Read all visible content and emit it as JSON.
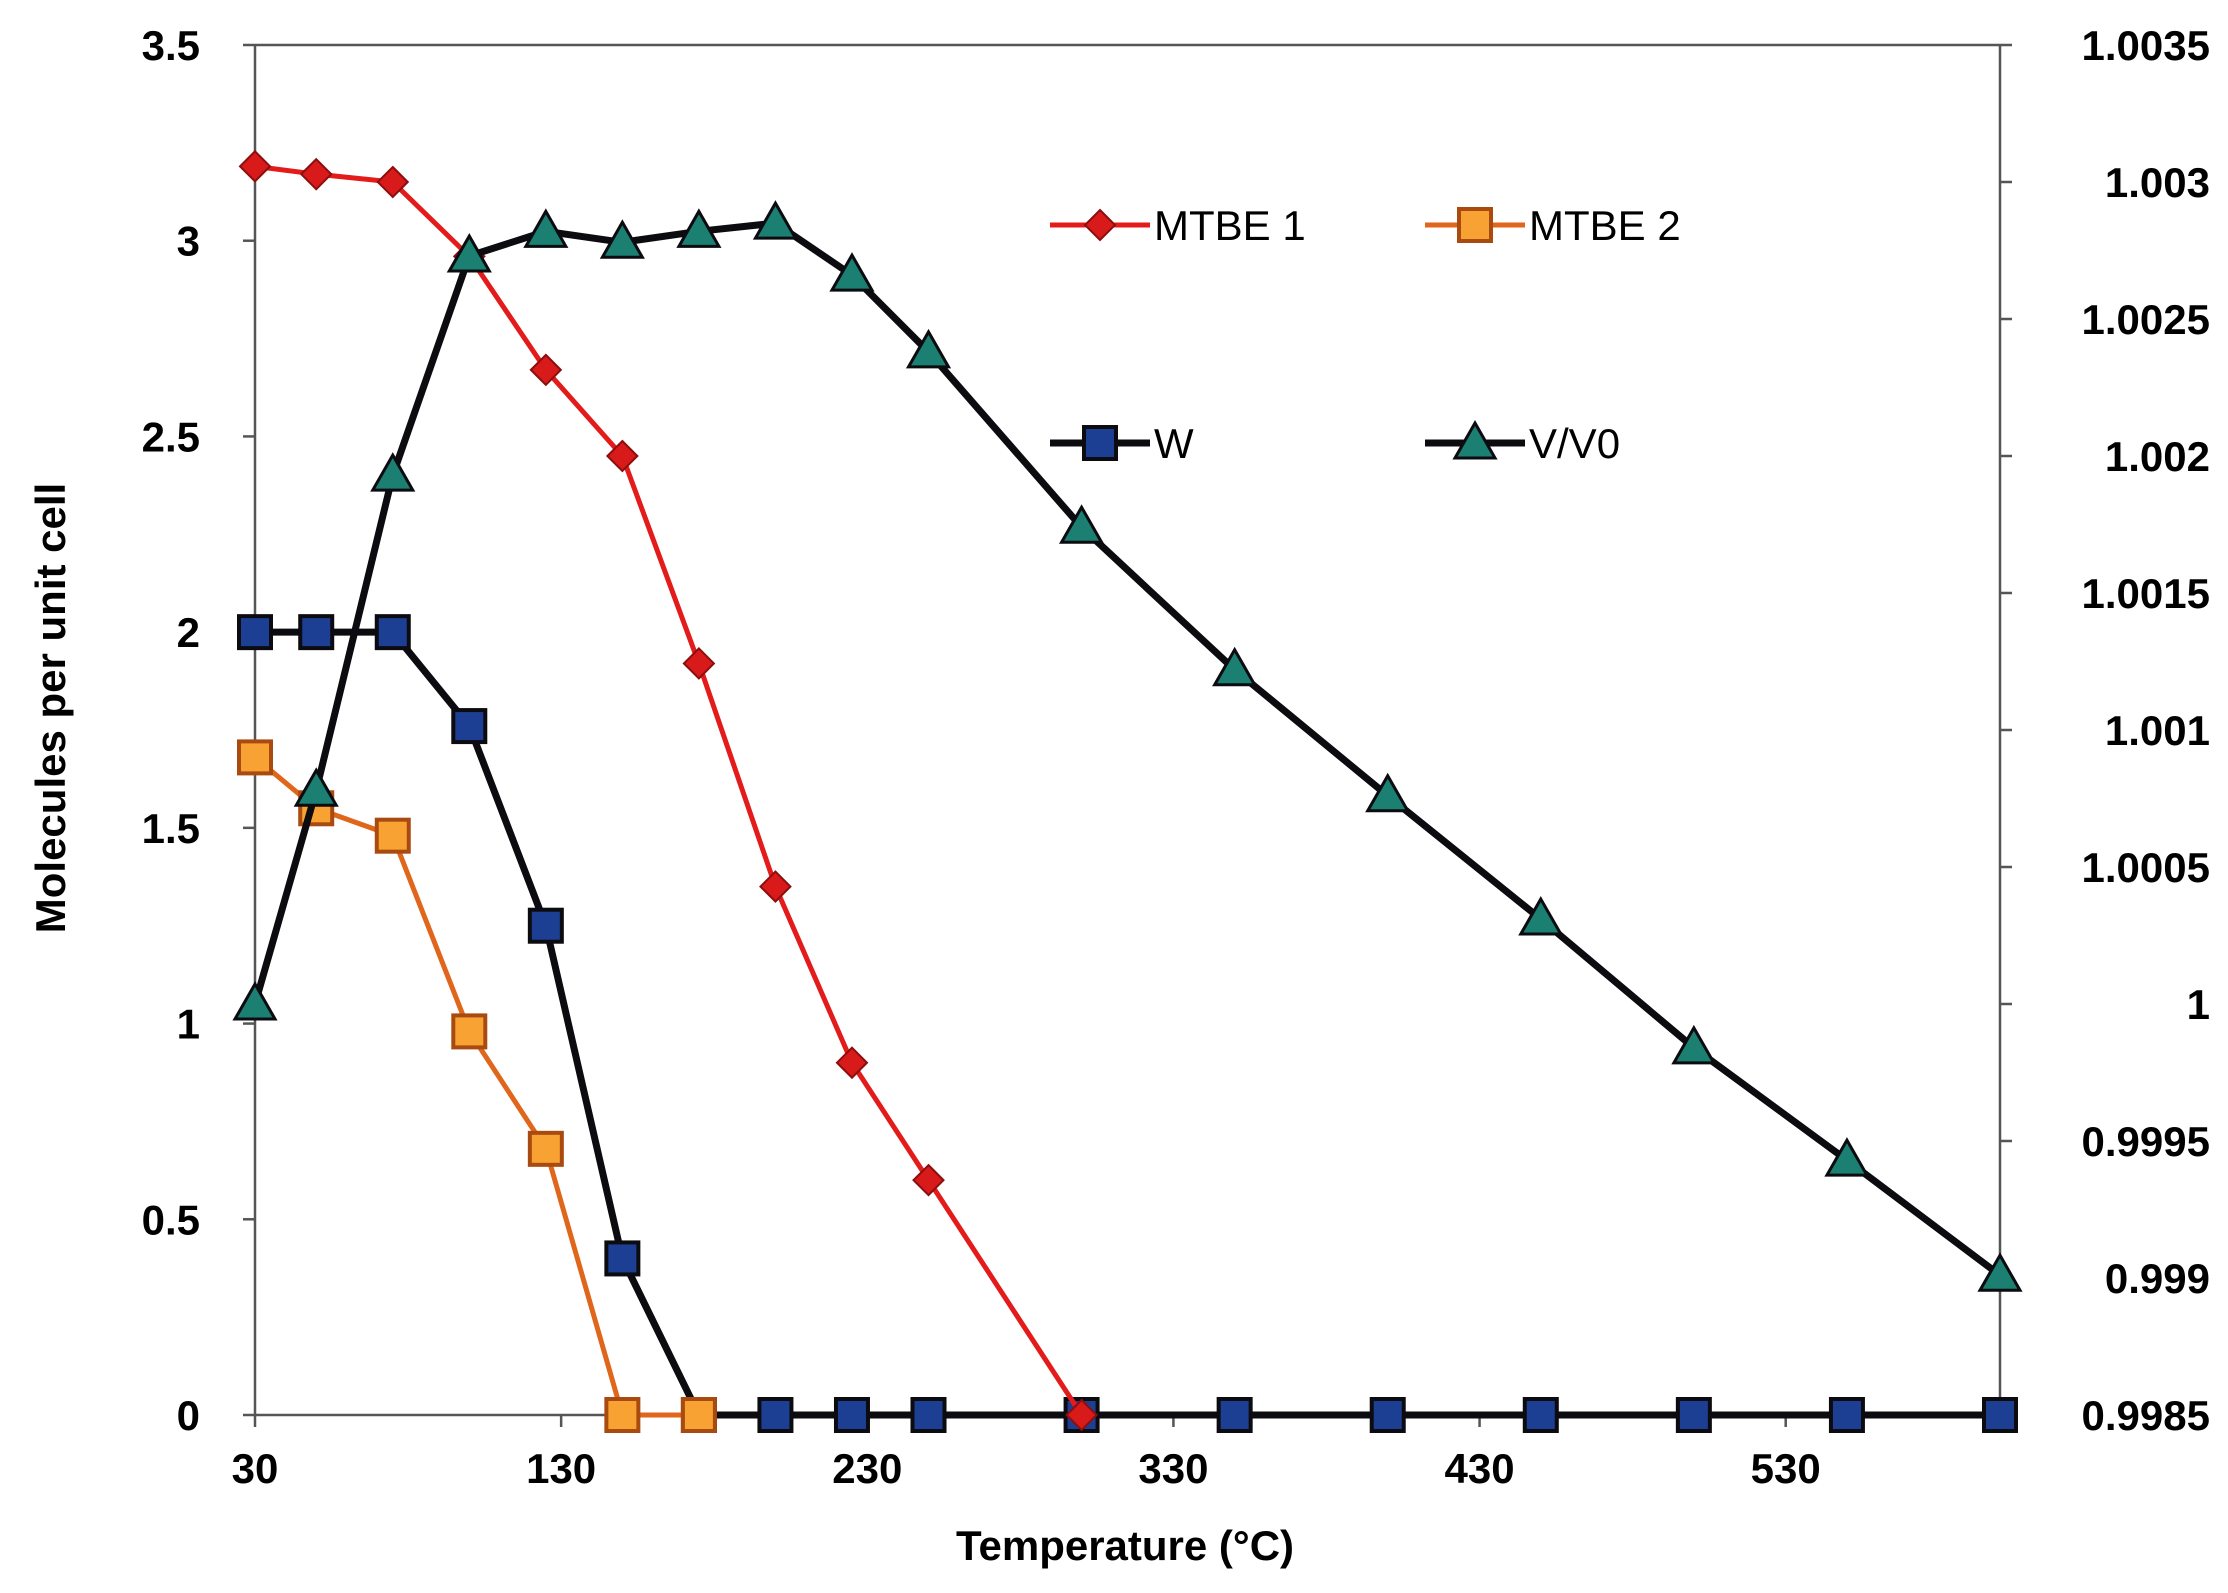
{
  "chart_data": {
    "type": "line",
    "title": "",
    "xlabel": "Temperature (°C)",
    "ylabel": "Molecules per unit cell",
    "y2label": "",
    "x_ticks": [
      "30",
      "130",
      "230",
      "330",
      "430",
      "530"
    ],
    "y_ticks": [
      "0",
      "0.5",
      "1",
      "1.5",
      "2",
      "2.5",
      "3",
      "3.5"
    ],
    "y2_ticks": [
      "0.9985",
      "0.999",
      "0.9995",
      "1",
      "1.0005",
      "1.001",
      "1.0015",
      "1.002",
      "1.0025",
      "1.003",
      "1.0035"
    ],
    "xlim": [
      30,
      600
    ],
    "ylim": [
      0,
      3.5
    ],
    "y2lim": [
      0.9985,
      1.0035
    ],
    "grid": false,
    "legend_position": "top-center",
    "series": [
      {
        "name": "MTBE 1",
        "axis": "left",
        "marker": "diamond",
        "color": "#e31b1b",
        "marker_fill": "#d91a1a",
        "x": [
          30,
          50,
          75,
          100,
          125,
          150,
          175,
          200,
          225,
          250,
          300
        ],
        "values": [
          3.19,
          3.17,
          3.15,
          2.96,
          2.67,
          2.45,
          1.92,
          1.35,
          0.9,
          0.6,
          0.0
        ]
      },
      {
        "name": "MTBE 2",
        "axis": "left",
        "marker": "square",
        "color": "#e0661c",
        "marker_fill": "#f7a232",
        "x": [
          30,
          50,
          75,
          100,
          125,
          150,
          175
        ],
        "values": [
          1.68,
          1.55,
          1.48,
          0.98,
          0.68,
          0.0,
          0.0
        ]
      },
      {
        "name": "W",
        "axis": "left",
        "marker": "square",
        "color": "#0b0b10",
        "marker_fill": "#1d3f93",
        "x": [
          30,
          50,
          75,
          100,
          125,
          150,
          175,
          200,
          225,
          250,
          300,
          350,
          400,
          450,
          500,
          550,
          600
        ],
        "values": [
          2.0,
          2.0,
          2.0,
          1.76,
          1.25,
          0.4,
          0.0,
          0.0,
          0.0,
          0.0,
          0.0,
          0.0,
          0.0,
          0.0,
          0.0,
          0.0,
          0.0
        ]
      },
      {
        "name": "V/V0",
        "axis": "right",
        "marker": "triangle",
        "color": "#0b0b10",
        "marker_fill": "#1b7f72",
        "x": [
          30,
          50,
          75,
          100,
          125,
          150,
          175,
          200,
          225,
          250,
          300,
          350,
          400,
          450,
          500,
          550,
          600
        ],
        "values": [
          1.0,
          1.00078,
          1.00193,
          1.00273,
          1.00282,
          1.00278,
          1.00282,
          1.00285,
          1.00266,
          1.00238,
          1.00174,
          1.00122,
          1.00076,
          1.00031,
          0.99984,
          0.99943,
          0.99901
        ]
      }
    ]
  }
}
